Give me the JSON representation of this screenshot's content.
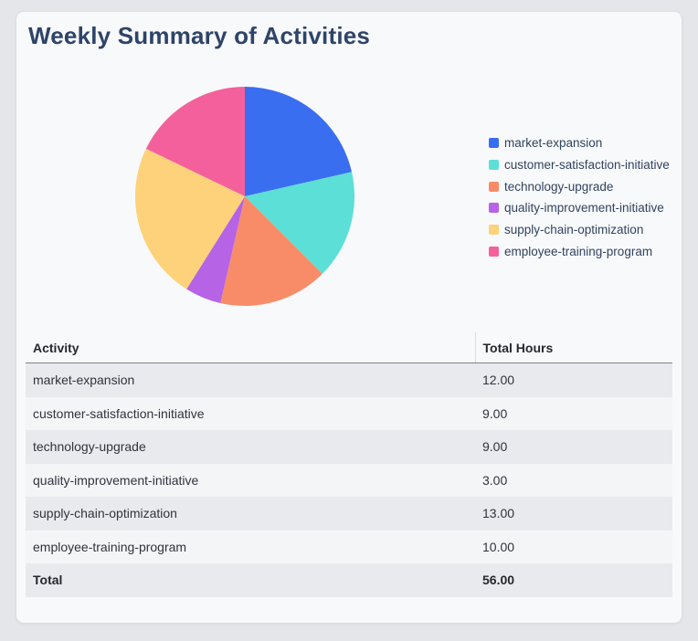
{
  "app": {
    "title": "Weekly Summary of Activities",
    "title_color": "#2e4468",
    "background_color": "#e4e6e9",
    "card_background_color": "#f8f9fb"
  },
  "chart_data": {
    "type": "pie",
    "title": "Weekly Summary of Activities",
    "labels": [
      "market-expansion",
      "customer-satisfaction-initiative",
      "technology-upgrade",
      "quality-improvement-initiative",
      "supply-chain-optimization",
      "employee-training-program"
    ],
    "values": [
      12,
      9,
      9,
      3,
      13,
      10
    ],
    "total": 56,
    "colors": [
      "#3a6ef0",
      "#5cdfd6",
      "#f88c69",
      "#b763e5",
      "#fdd27a",
      "#f4609b"
    ],
    "start_angle_deg": 0,
    "direction": "clockwise",
    "legend_position": "right",
    "legend_text_color": "#31435e"
  },
  "table": {
    "columns": [
      "Activity",
      "Total Hours"
    ],
    "rows": [
      {
        "activity": "market-expansion",
        "hours": "12.00"
      },
      {
        "activity": "customer-satisfaction-initiative",
        "hours": "9.00"
      },
      {
        "activity": "technology-upgrade",
        "hours": "9.00"
      },
      {
        "activity": "quality-improvement-initiative",
        "hours": "3.00"
      },
      {
        "activity": "supply-chain-optimization",
        "hours": "13.00"
      },
      {
        "activity": "employee-training-program",
        "hours": "10.00"
      }
    ],
    "total_row": {
      "activity": "Total",
      "hours": "56.00"
    },
    "stripe_row_color": "#e8eaed",
    "alt_row_color": "#f4f5f7"
  }
}
